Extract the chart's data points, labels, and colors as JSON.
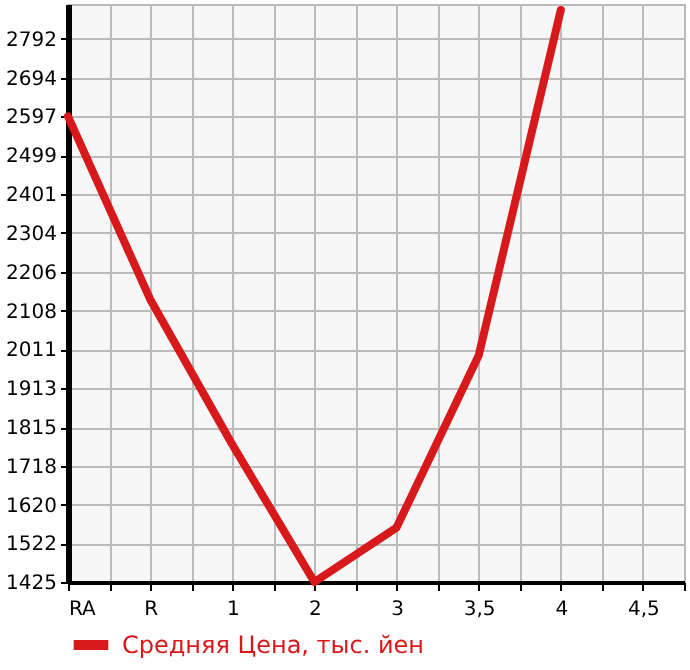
{
  "chart_data": {
    "type": "line",
    "categories": [
      "RA",
      "R",
      "1",
      "2",
      "3",
      "3,5",
      "4",
      "4,5"
    ],
    "series": [
      {
        "name": "Средняя Цена, тыс. йен",
        "color": "#d7191c",
        "values": [
          2597,
          2137,
          1771,
          1425,
          1562,
          1995,
          2865,
          null
        ]
      }
    ],
    "ylim": [
      1425,
      2880
    ],
    "yticks": [
      1425,
      1522,
      1620,
      1718,
      1815,
      1913,
      2011,
      2108,
      2206,
      2304,
      2401,
      2499,
      2597,
      2694,
      2792
    ],
    "grid": true,
    "legend": "bottom left",
    "marker": "none",
    "line_style": "solid"
  }
}
